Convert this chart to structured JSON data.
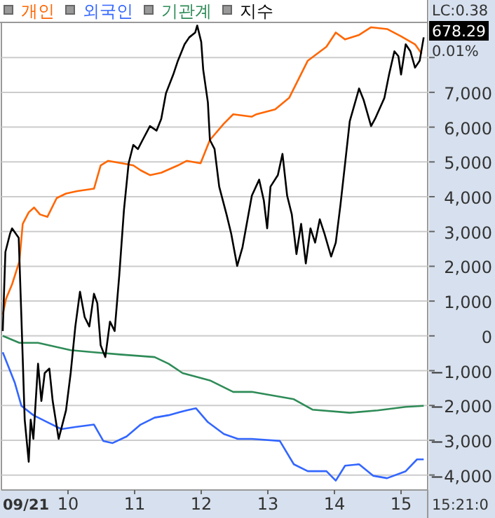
{
  "chart_data": {
    "type": "line",
    "legend": "top left",
    "grid": "y",
    "xlim": [
      9,
      15.4
    ],
    "xticks": [
      10,
      11,
      12,
      13,
      14,
      15
    ],
    "ylim": [
      -4430,
      9010
    ],
    "yticks": [
      {
        "value": 8000,
        "label": null
      },
      {
        "value": 7000,
        "label": "7,000"
      },
      {
        "value": 6000,
        "label": "6,000"
      },
      {
        "value": 5000,
        "label": "5,000"
      },
      {
        "value": 4000,
        "label": "4,000"
      },
      {
        "value": 3000,
        "label": "3,000"
      },
      {
        "value": 2000,
        "label": "2,000"
      },
      {
        "value": 1000,
        "label": "1,000"
      },
      0,
      {
        "value": -1000,
        "label": "−1,000"
      },
      {
        "value": -2000,
        "label": "−2,000"
      },
      {
        "value": -3000,
        "label": "−3,000"
      },
      {
        "value": -4000,
        "label": "−4,000"
      }
    ],
    "annotations": [
      "LC:0.38",
      "678.29",
      "0.01%",
      "15:21:0",
      "09/21"
    ],
    "series": [
      {
        "name": "개인",
        "color": "#ff6600",
        "x": [
          9.02,
          9.07,
          9.16,
          9.27,
          9.32,
          9.41,
          9.49,
          9.58,
          9.69,
          9.83,
          9.97,
          10.14,
          10.39,
          10.49,
          10.6,
          10.81,
          10.98,
          11.09,
          11.23,
          11.4,
          11.65,
          11.78,
          11.99,
          12.13,
          12.34,
          12.48,
          12.76,
          12.83,
          13.11,
          13.32,
          13.6,
          13.88,
          14.02,
          14.16,
          14.37,
          14.55,
          14.79,
          15.0,
          15.21,
          15.31
        ],
        "values": [
          610,
          1070,
          1480,
          2140,
          3220,
          3550,
          3690,
          3490,
          3420,
          3960,
          4090,
          4160,
          4230,
          4900,
          5030,
          4960,
          4900,
          4760,
          4620,
          4690,
          4900,
          5030,
          4960,
          5630,
          6100,
          6370,
          6300,
          6370,
          6510,
          6840,
          7910,
          8310,
          8720,
          8520,
          8650,
          8870,
          8820,
          8610,
          8380,
          8110
        ]
      },
      {
        "name": "외국인",
        "color": "#3366ff",
        "x": [
          9.02,
          9.2,
          9.3,
          9.48,
          9.69,
          9.9,
          10.11,
          10.39,
          10.53,
          10.67,
          10.88,
          11.09,
          11.3,
          11.51,
          11.78,
          11.92,
          12.1,
          12.34,
          12.55,
          12.76,
          12.83,
          13.18,
          13.39,
          13.6,
          13.88,
          14.02,
          14.16,
          14.37,
          14.58,
          14.79,
          15.07,
          15.24,
          15.34
        ],
        "values": [
          -470,
          -1340,
          -2010,
          -2280,
          -2480,
          -2680,
          -2620,
          -2550,
          -3020,
          -3080,
          -2890,
          -2550,
          -2350,
          -2280,
          -2140,
          -2080,
          -2480,
          -2820,
          -2960,
          -2960,
          -2970,
          -3020,
          -3690,
          -3890,
          -3890,
          -4160,
          -3730,
          -3690,
          -4020,
          -4090,
          -3890,
          -3550,
          -3550
        ]
      },
      {
        "name": "기관계",
        "color": "#2e8b57",
        "x": [
          9.02,
          9.27,
          9.55,
          10.04,
          10.39,
          10.81,
          11.3,
          11.51,
          11.72,
          12.13,
          12.48,
          12.76,
          13.39,
          13.67,
          14.23,
          14.65,
          15.07,
          15.34
        ],
        "values": [
          0,
          -200,
          -200,
          -410,
          -470,
          -540,
          -610,
          -800,
          -1070,
          -1280,
          -1610,
          -1610,
          -1820,
          -2120,
          -2210,
          -2140,
          -2040,
          -2010
        ]
      },
      {
        "name": "지수",
        "color": "#000000",
        "x": [
          9.02,
          9.06,
          9.13,
          9.16,
          9.26,
          9.3,
          9.35,
          9.41,
          9.44,
          9.48,
          9.55,
          9.6,
          9.65,
          9.72,
          9.77,
          9.86,
          9.97,
          10.04,
          10.11,
          10.18,
          10.25,
          10.32,
          10.39,
          10.44,
          10.49,
          10.56,
          10.63,
          10.7,
          10.77,
          10.84,
          10.91,
          10.98,
          11.05,
          11.12,
          11.23,
          11.33,
          11.4,
          11.47,
          11.58,
          11.65,
          11.75,
          11.82,
          11.91,
          11.94,
          12.0,
          12.03,
          12.1,
          12.13,
          12.2,
          12.27,
          12.38,
          12.45,
          12.54,
          12.62,
          12.76,
          12.87,
          12.94,
          12.99,
          13.04,
          13.15,
          13.22,
          13.29,
          13.36,
          13.43,
          13.5,
          13.57,
          13.64,
          13.71,
          13.78,
          13.85,
          13.95,
          14.02,
          14.09,
          14.16,
          14.23,
          14.37,
          14.44,
          14.55,
          14.61,
          14.69,
          14.75,
          14.82,
          14.9,
          14.96,
          15.0,
          15.07,
          15.14,
          15.21,
          15.28,
          15.34
        ],
        "values": [
          140,
          2410,
          2940,
          3090,
          2820,
          540,
          -2410,
          -3620,
          -2410,
          -2960,
          -800,
          -1870,
          -1070,
          -940,
          -1870,
          -2960,
          -2140,
          -1070,
          270,
          1270,
          540,
          270,
          1210,
          940,
          -270,
          -610,
          410,
          140,
          1750,
          3620,
          4960,
          5490,
          5370,
          5630,
          6030,
          5900,
          6240,
          6970,
          7510,
          7910,
          8380,
          8580,
          8720,
          8920,
          8450,
          7650,
          6710,
          5630,
          5370,
          4290,
          3490,
          2940,
          2010,
          2550,
          4030,
          4490,
          3890,
          3090,
          4290,
          4620,
          5230,
          4030,
          3490,
          2350,
          3220,
          2080,
          3090,
          2680,
          3350,
          2940,
          2280,
          2680,
          3760,
          4960,
          6170,
          7110,
          6770,
          6030,
          6240,
          6580,
          6840,
          7510,
          8180,
          8040,
          7510,
          8380,
          8180,
          7710,
          7910,
          8580
        ]
      }
    ]
  }
}
